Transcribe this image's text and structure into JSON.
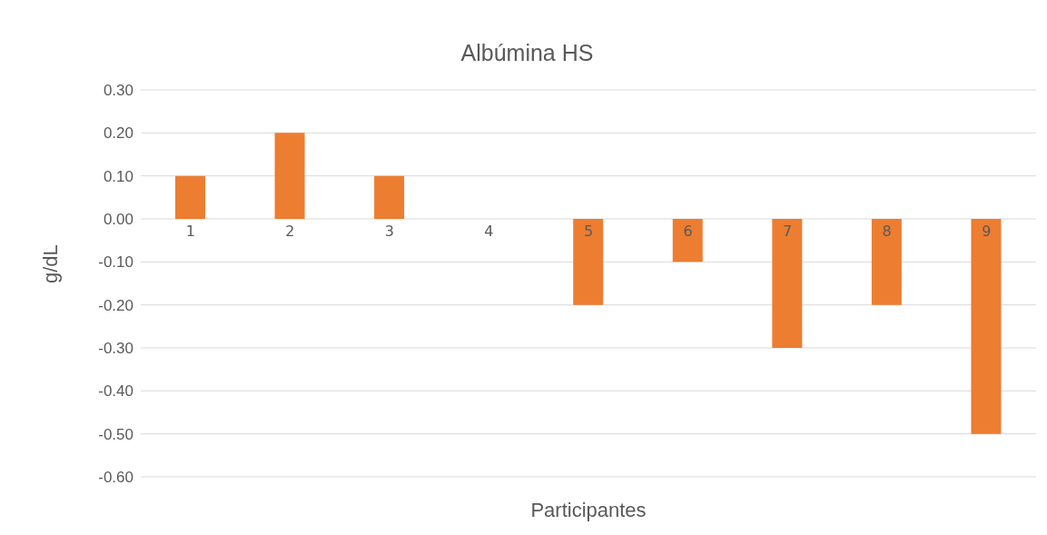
{
  "chart_data": {
    "type": "bar",
    "title": "Albúmina HS",
    "xlabel": "Participantes",
    "ylabel": "g/dL",
    "categories": [
      "1",
      "2",
      "3",
      "4",
      "5",
      "6",
      "7",
      "8",
      "9"
    ],
    "values": [
      0.1,
      0.2,
      0.1,
      0,
      -0.2,
      -0.1,
      -0.3,
      -0.2,
      -0.5
    ],
    "color": "#ed7d31",
    "ylim": [
      -0.6,
      0.3
    ],
    "yticks": [
      {
        "value": -0.6,
        "label": "-0.60"
      },
      {
        "value": -0.5,
        "label": "-0.50"
      },
      {
        "value": -0.4,
        "label": "-0.40"
      },
      {
        "value": -0.3,
        "label": "-0.30"
      },
      {
        "value": -0.2,
        "label": "-0.20"
      },
      {
        "value": -0.1,
        "label": "-0.10"
      },
      {
        "value": 0,
        "label": "0.00"
      },
      {
        "value": 0.1,
        "label": "0.10"
      },
      {
        "value": 0.2,
        "label": "0.20"
      },
      {
        "value": 0.3,
        "label": "0.30"
      }
    ],
    "grid": "y",
    "legend": false
  }
}
